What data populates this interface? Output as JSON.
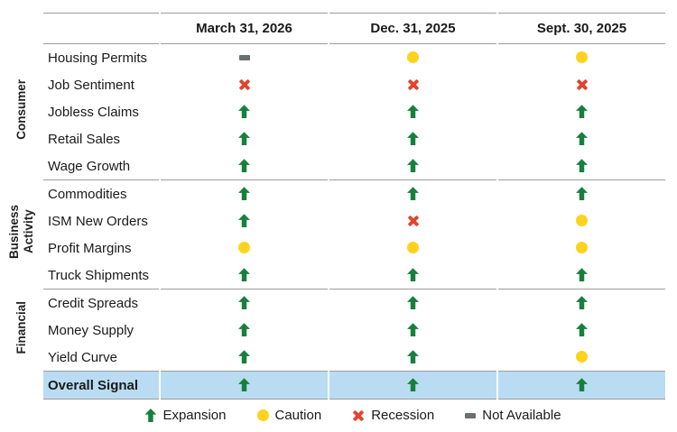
{
  "chart_data": {
    "type": "table",
    "columns": [
      "March 31, 2026",
      "Dec. 31, 2025",
      "Sept. 30, 2025"
    ],
    "groups": [
      {
        "label": "Consumer",
        "row_span": 5
      },
      {
        "label": "Business\nActivity",
        "row_span": 4
      },
      {
        "label": "Financial",
        "row_span": 3
      }
    ],
    "rows": [
      {
        "label": "Housing Permits",
        "group": "Consumer",
        "values": [
          "na",
          "caution",
          "caution"
        ]
      },
      {
        "label": "Job Sentiment",
        "group": "Consumer",
        "values": [
          "recession",
          "recession",
          "recession"
        ]
      },
      {
        "label": "Jobless Claims",
        "group": "Consumer",
        "values": [
          "expansion",
          "expansion",
          "expansion"
        ]
      },
      {
        "label": "Retail Sales",
        "group": "Consumer",
        "values": [
          "expansion",
          "expansion",
          "expansion"
        ]
      },
      {
        "label": "Wage Growth",
        "group": "Consumer",
        "values": [
          "expansion",
          "expansion",
          "expansion"
        ]
      },
      {
        "label": "Commodities",
        "group": "Business Activity",
        "values": [
          "expansion",
          "expansion",
          "expansion"
        ]
      },
      {
        "label": "ISM New Orders",
        "group": "Business Activity",
        "values": [
          "expansion",
          "recession",
          "caution"
        ]
      },
      {
        "label": "Profit Margins",
        "group": "Business Activity",
        "values": [
          "caution",
          "caution",
          "caution"
        ]
      },
      {
        "label": "Truck Shipments",
        "group": "Business Activity",
        "values": [
          "expansion",
          "expansion",
          "expansion"
        ]
      },
      {
        "label": "Credit Spreads",
        "group": "Financial",
        "values": [
          "expansion",
          "expansion",
          "expansion"
        ]
      },
      {
        "label": "Money Supply",
        "group": "Financial",
        "values": [
          "expansion",
          "expansion",
          "expansion"
        ]
      },
      {
        "label": "Yield Curve",
        "group": "Financial",
        "values": [
          "expansion",
          "expansion",
          "caution"
        ]
      }
    ],
    "overall_row": {
      "label": "Overall Signal",
      "values": [
        "expansion",
        "expansion",
        "expansion"
      ]
    },
    "legend": [
      {
        "status": "expansion",
        "label": "Expansion"
      },
      {
        "status": "caution",
        "label": "Caution"
      },
      {
        "status": "recession",
        "label": "Recession"
      },
      {
        "status": "na",
        "label": "Not Available"
      }
    ],
    "status_meanings": {
      "expansion": "green up arrow",
      "caution": "yellow circle",
      "recession": "red x",
      "na": "gray dash"
    },
    "colors": {
      "expansion": "#17803d",
      "caution": "#ffd21e",
      "recession": "#e2442e",
      "na": "#68716d",
      "overall_bg": "#b9dcf2",
      "rule": "#9c9c9c"
    }
  }
}
